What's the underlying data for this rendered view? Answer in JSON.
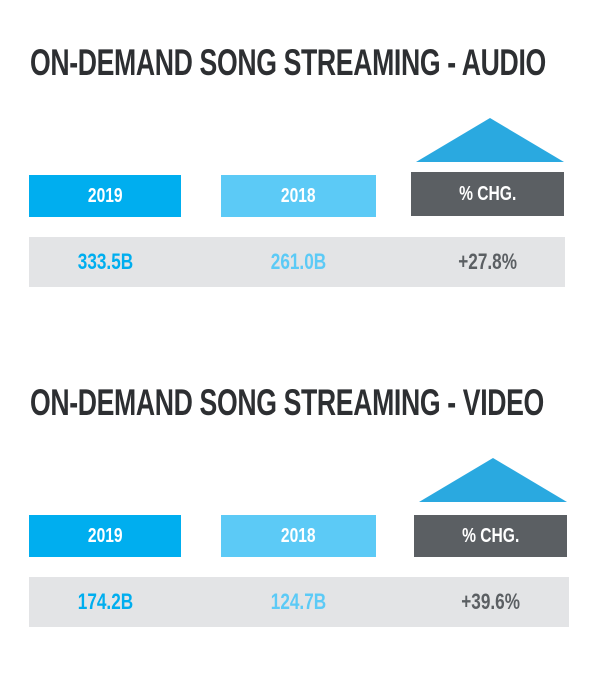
{
  "colors": {
    "col_2019": "#00aeef",
    "col_2018": "#5ccaf6",
    "col_chg": "#5b5f63",
    "triangle": "#2aa9e0",
    "value_row_bg": "#e3e4e6",
    "title": "#2d2f32"
  },
  "chart_data": [
    {
      "type": "table",
      "title": "ON-DEMAND SONG STREAMING - AUDIO",
      "columns": [
        "2019",
        "2018",
        "% CHG."
      ],
      "values": [
        "333.5B",
        "261.0B",
        "+27.8%"
      ],
      "icon": "up-triangle-icon"
    },
    {
      "type": "table",
      "title": "ON-DEMAND SONG STREAMING - VIDEO",
      "columns": [
        "2019",
        "2018",
        "% CHG."
      ],
      "values": [
        "174.2B",
        "124.7B",
        "+39.6%"
      ],
      "icon": "up-triangle-icon"
    }
  ]
}
